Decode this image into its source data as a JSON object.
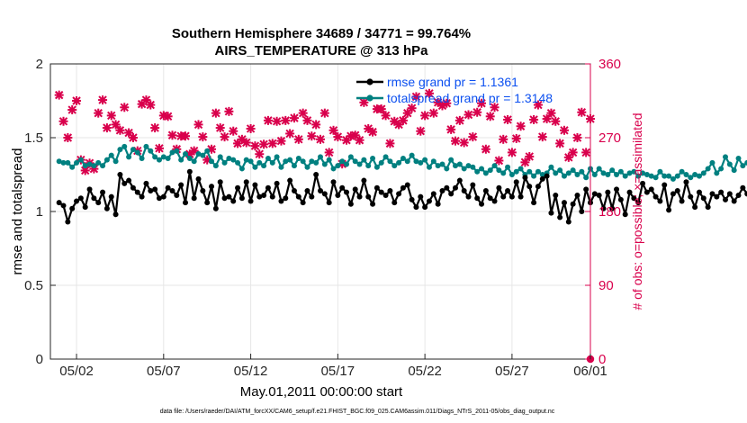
{
  "colors": {
    "rmse": "#000000",
    "spread": "#008080",
    "obs": "#d9004c",
    "legend_text": "#0b4ff0",
    "grid": "#e6e6e6"
  },
  "chart_data": {
    "type": "line",
    "title": "Southern Hemisphere 34689 / 34771 = 99.764%",
    "subtitle": "AIRS_TEMPERATURE @ 313 hPa",
    "xlabel": "May.01,2011 00:00:00 start",
    "ylabel_left": "rmse and totalspread",
    "ylabel_right": "# of obs: o=possible; ×=assimilated",
    "footnote": "data file: /Users/raeder/DAI/ATM_forcXX/CAM6_setup/f.e21.FHIST_BGC.f09_025.CAM6assim.011/Diags_NTrS_2011-05/obs_diag_output.nc",
    "grid": true,
    "legend_position": "top-right",
    "x_range": [
      0.5,
      31.5
    ],
    "x_ticks": [
      2,
      7,
      12,
      17,
      22,
      27,
      32
    ],
    "x_tick_labels": [
      "05/02",
      "05/07",
      "05/12",
      "05/17",
      "05/22",
      "05/27",
      "06/01"
    ],
    "ylim_left": [
      0,
      2
    ],
    "yticks_left": [
      "0",
      "0.5",
      "1",
      "1.5",
      "2"
    ],
    "ylim_right": [
      0,
      360
    ],
    "yticks_right": [
      "0",
      "90",
      "180",
      "270",
      "360"
    ],
    "series": [
      {
        "name": "rmse grand pr = 1.1361",
        "axis": "left",
        "x_start": 1.0,
        "x_step": 0.25,
        "values": [
          1.06,
          1.04,
          0.93,
          1.02,
          1.07,
          1.09,
          1.03,
          1.15,
          1.09,
          1.06,
          1.13,
          1.02,
          1.1,
          0.98,
          1.25,
          1.19,
          1.21,
          1.16,
          1.13,
          1.1,
          1.19,
          1.14,
          1.15,
          1.09,
          1.1,
          1.16,
          1.14,
          1.11,
          1.18,
          1.06,
          1.27,
          1.09,
          1.22,
          1.14,
          1.06,
          1.17,
          1.02,
          1.2,
          1.09,
          1.1,
          1.07,
          1.16,
          1.09,
          1.2,
          1.07,
          1.18,
          1.1,
          1.11,
          1.16,
          1.1,
          1.19,
          1.07,
          1.09,
          1.21,
          1.14,
          1.1,
          1.06,
          1.14,
          1.1,
          1.25,
          1.14,
          1.12,
          1.06,
          1.2,
          1.11,
          1.16,
          1.13,
          1.05,
          1.15,
          1.1,
          1.21,
          1.1,
          1.05,
          1.16,
          1.13,
          1.11,
          1.14,
          1.06,
          1.12,
          1.16,
          1.18,
          1.08,
          1.03,
          1.1,
          1.03,
          1.07,
          1.12,
          1.05,
          1.14,
          1.16,
          1.12,
          1.16,
          1.21,
          1.14,
          1.1,
          1.18,
          1.09,
          1.05,
          1.14,
          1.09,
          1.07,
          1.16,
          1.1,
          1.14,
          1.1,
          1.2,
          1.1,
          1.23,
          1.17,
          1.06,
          1.17,
          1.22,
          1.24,
          0.99,
          1.11,
          0.96,
          1.06,
          0.93,
          1.05,
          1.11,
          1.0,
          1.15,
          1.06,
          1.12,
          1.11,
          1.02,
          1.13,
          1.02,
          1.15,
          1.08,
          0.98,
          1.13,
          1.09,
          1.06,
          1.19,
          1.13,
          1.15,
          1.1,
          1.07,
          1.18,
          1.01,
          1.12,
          1.14,
          1.07,
          1.2,
          1.1,
          1.03,
          1.13,
          1.09,
          1.03,
          1.12,
          1.1,
          1.13,
          1.08,
          1.12,
          1.07,
          1.11,
          1.16,
          1.12,
          1.11,
          1.16,
          1.06,
          1.12,
          1.05,
          1.05,
          1.05,
          1.06,
          1.17,
          1.17
        ]
      },
      {
        "name": "totalspread grand pr = 1.3148",
        "axis": "left",
        "x_start": 1.0,
        "x_step": 0.25,
        "values": [
          1.34,
          1.33,
          1.33,
          1.3,
          1.33,
          1.35,
          1.31,
          1.32,
          1.31,
          1.33,
          1.31,
          1.35,
          1.38,
          1.34,
          1.42,
          1.44,
          1.37,
          1.42,
          1.4,
          1.36,
          1.44,
          1.41,
          1.37,
          1.35,
          1.37,
          1.36,
          1.4,
          1.41,
          1.35,
          1.39,
          1.36,
          1.34,
          1.39,
          1.38,
          1.41,
          1.34,
          1.31,
          1.37,
          1.33,
          1.36,
          1.35,
          1.33,
          1.29,
          1.35,
          1.34,
          1.3,
          1.33,
          1.31,
          1.36,
          1.33,
          1.37,
          1.3,
          1.34,
          1.35,
          1.31,
          1.36,
          1.34,
          1.3,
          1.34,
          1.33,
          1.37,
          1.32,
          1.35,
          1.29,
          1.31,
          1.34,
          1.32,
          1.37,
          1.34,
          1.32,
          1.35,
          1.31,
          1.36,
          1.3,
          1.33,
          1.37,
          1.34,
          1.31,
          1.33,
          1.36,
          1.34,
          1.38,
          1.34,
          1.33,
          1.35,
          1.3,
          1.34,
          1.31,
          1.32,
          1.29,
          1.35,
          1.31,
          1.32,
          1.29,
          1.31,
          1.3,
          1.27,
          1.29,
          1.26,
          1.28,
          1.31,
          1.28,
          1.26,
          1.3,
          1.25,
          1.27,
          1.29,
          1.25,
          1.27,
          1.24,
          1.27,
          1.25,
          1.26,
          1.3,
          1.26,
          1.28,
          1.24,
          1.26,
          1.28,
          1.25,
          1.27,
          1.23,
          1.29,
          1.25,
          1.29,
          1.26,
          1.25,
          1.28,
          1.25,
          1.27,
          1.24,
          1.26,
          1.27,
          1.24,
          1.26,
          1.25,
          1.24,
          1.23,
          1.27,
          1.24,
          1.24,
          1.22,
          1.24,
          1.27,
          1.25,
          1.23,
          1.25,
          1.24,
          1.26,
          1.29,
          1.33,
          1.26,
          1.29,
          1.37,
          1.32,
          1.28,
          1.36,
          1.31,
          1.33,
          1.31,
          1.39,
          1.33,
          1.26,
          1.3,
          1.25,
          1.31,
          1.27,
          1.23,
          1.25,
          1.28,
          1.23
        ]
      },
      {
        "name": "obs assimilated",
        "axis": "right",
        "x_start": 1.0,
        "x_step": 0.25,
        "values": [
          322,
          290,
          270,
          304,
          315,
          243,
          230,
          239,
          232,
          300,
          316,
          282,
          297,
          286,
          279,
          307,
          276,
          270,
          254,
          311,
          316,
          310,
          282,
          257,
          297,
          296,
          273,
          256,
          272,
          272,
          250,
          254,
          286,
          271,
          243,
          256,
          300,
          282,
          271,
          302,
          278,
          263,
          268,
          264,
          281,
          260,
          250,
          262,
          291,
          263,
          290,
          266,
          291,
          275,
          294,
          268,
          300,
          291,
          272,
          286,
          268,
          300,
          252,
          279,
          271,
          238,
          267,
          272,
          273,
          267,
          313,
          281,
          277,
          305,
          305,
          297,
          263,
          290,
          286,
          291,
          300,
          306,
          320,
          278,
          297,
          324,
          300,
          313,
          309,
          312,
          280,
          266,
          291,
          264,
          298,
          271,
          301,
          312,
          256,
          296,
          307,
          242,
          268,
          292,
          252,
          269,
          284,
          240,
          247,
          292,
          310,
          271,
          293,
          300,
          290,
          263,
          279,
          246,
          252,
          270,
          301,
          252,
          293,
          272,
          304,
          301,
          268,
          302,
          312,
          269,
          269,
          288,
          285,
          302,
          268,
          310,
          316,
          315,
          304,
          254,
          309,
          256,
          297,
          297,
          284,
          268,
          305,
          264,
          271,
          281,
          293,
          295,
          266,
          268,
          249,
          300,
          283,
          291,
          301,
          272,
          271,
          306,
          310,
          288,
          297,
          268,
          304,
          290,
          298,
          290,
          295,
          266,
          311,
          321,
          298,
          268,
          298,
          300,
          295,
          290,
          301,
          295,
          305,
          281,
          304,
          307,
          300,
          312,
          301,
          293,
          310,
          311,
          315,
          305,
          312,
          321,
          301,
          315,
          307,
          297,
          305,
          311,
          315,
          299,
          313,
          311,
          313,
          312,
          298,
          323,
          312,
          315,
          297,
          295
        ]
      },
      {
        "name": "obs possible",
        "axis": "right",
        "x_start": 1.0,
        "x_step": 0.25,
        "values": [
          0
        ]
      }
    ]
  }
}
